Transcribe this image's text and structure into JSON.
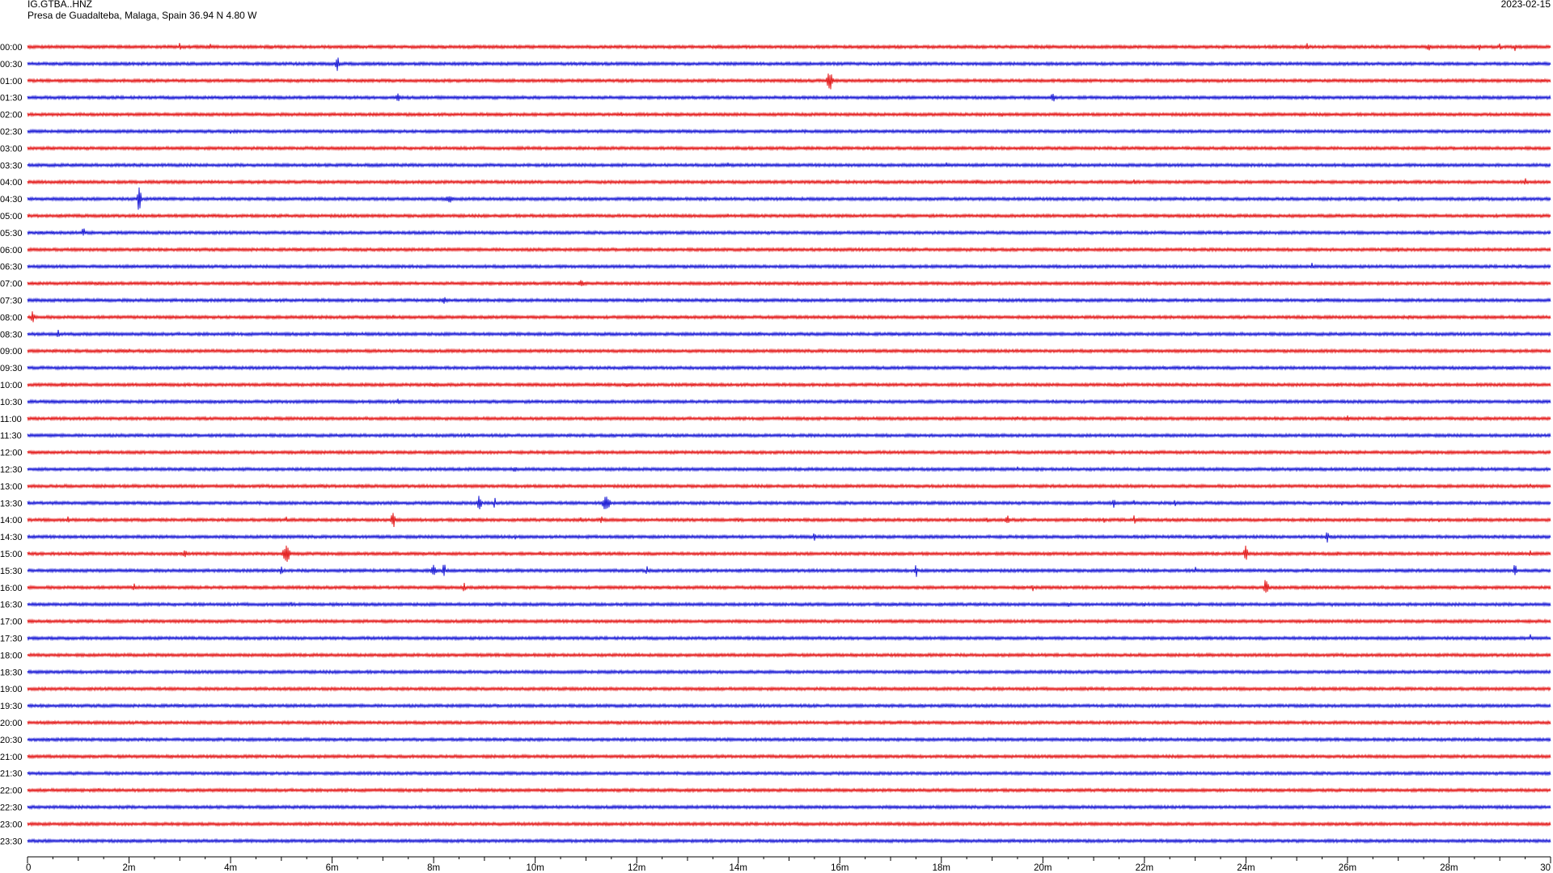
{
  "header": {
    "station": "IG.GTBA..HNZ",
    "location": "Presa de Guadalteba, Malaga, Spain  36.94 N 4.80 W",
    "date": "2023-02-15"
  },
  "colors": {
    "even_row": "#e00000",
    "odd_row": "#0000d0",
    "axis": "#000000",
    "background": "#ffffff"
  },
  "chart_data": {
    "type": "line",
    "title": "",
    "xlabel": "",
    "ylabel": "",
    "xlim": [
      0,
      30
    ],
    "x_ticks": [
      "0",
      "2m",
      "4m",
      "6m",
      "8m",
      "10m",
      "12m",
      "14m",
      "16m",
      "18m",
      "20m",
      "22m",
      "24m",
      "26m",
      "28m",
      "30"
    ],
    "rows": [
      "00:00",
      "00:30",
      "01:00",
      "01:30",
      "02:00",
      "02:30",
      "03:00",
      "03:30",
      "04:00",
      "04:30",
      "05:00",
      "05:30",
      "06:00",
      "06:30",
      "07:00",
      "07:30",
      "08:00",
      "08:30",
      "09:00",
      "09:30",
      "10:00",
      "10:30",
      "11:00",
      "11:30",
      "12:00",
      "12:30",
      "13:00",
      "13:30",
      "14:00",
      "14:30",
      "15:00",
      "15:30",
      "16:00",
      "16:30",
      "17:00",
      "17:30",
      "18:00",
      "18:30",
      "19:00",
      "19:30",
      "20:00",
      "20:30",
      "21:00",
      "21:30",
      "22:00",
      "22:30",
      "23:00",
      "23:30"
    ],
    "events": {
      "00:00": [
        [
          1.2,
          0.6,
          4
        ],
        [
          3.0,
          1.2,
          6
        ],
        [
          3.6,
          1.2,
          6
        ],
        [
          4.8,
          1.0,
          4
        ],
        [
          8.2,
          1.0,
          3
        ],
        [
          11.7,
          0.9,
          4
        ],
        [
          25.2,
          2.0,
          5
        ],
        [
          27.6,
          2.4,
          5
        ],
        [
          28.6,
          1.6,
          5
        ],
        [
          29.0,
          1.0,
          6
        ],
        [
          29.3,
          1.3,
          6
        ]
      ],
      "00:30": [
        [
          2.0,
          1.0,
          3
        ],
        [
          6.1,
          2.1,
          11
        ],
        [
          18.2,
          0.9,
          4
        ]
      ],
      "01:00": [
        [
          11.7,
          1.2,
          3
        ],
        [
          15.8,
          4.1,
          12
        ],
        [
          20.8,
          0.9,
          3
        ]
      ],
      "01:30": [
        [
          7.3,
          3.0,
          6
        ],
        [
          14.1,
          1.0,
          3
        ],
        [
          20.2,
          3.0,
          6
        ]
      ],
      "02:00": [
        [
          11.7,
          1.5,
          4
        ],
        [
          19.2,
          0.9,
          3
        ]
      ],
      "02:30": [
        [
          0.1,
          1.0,
          3
        ],
        [
          3.0,
          0.9,
          3
        ],
        [
          4.0,
          1.1,
          4
        ],
        [
          26.6,
          2.0,
          4
        ]
      ],
      "03:00": [
        [
          24.8,
          0.8,
          3
        ]
      ],
      "03:30": [
        [
          2.1,
          0.9,
          3
        ],
        [
          13.8,
          1.0,
          4
        ],
        [
          18.1,
          2.3,
          4
        ]
      ],
      "04:00": [
        [
          13.0,
          0.8,
          3
        ],
        [
          17.1,
          0.8,
          3
        ],
        [
          18.7,
          1.5,
          4
        ],
        [
          21.8,
          1.2,
          4
        ],
        [
          29.5,
          1.5,
          6
        ]
      ],
      "04:30": [
        [
          2.2,
          2.3,
          18
        ],
        [
          8.3,
          6.0,
          5
        ],
        [
          27.0,
          1.0,
          4
        ]
      ],
      "05:00": [
        [
          13.8,
          0.8,
          3
        ],
        [
          18.9,
          0.8,
          3
        ]
      ],
      "05:30": [
        [
          1.1,
          2.6,
          6
        ],
        [
          10.7,
          1.0,
          3
        ]
      ],
      "06:00": [
        [
          14.8,
          3.0,
          3
        ],
        [
          18.5,
          1.0,
          4
        ],
        [
          27.0,
          2.0,
          3
        ]
      ],
      "06:30": [
        [
          12.4,
          2.0,
          3
        ],
        [
          25.3,
          1.3,
          5
        ],
        [
          29.4,
          2.3,
          3
        ]
      ],
      "07:00": [
        [
          1.4,
          2.0,
          3
        ],
        [
          10.9,
          4.0,
          5
        ]
      ],
      "07:30": [
        [
          8.2,
          3.0,
          5
        ],
        [
          15.3,
          1.6,
          3
        ],
        [
          25.6,
          3.0,
          3
        ]
      ],
      "08:00": [
        [
          0.1,
          2.3,
          8
        ],
        [
          7.2,
          1.9,
          3
        ],
        [
          14.8,
          2.0,
          3
        ],
        [
          24.8,
          1.2,
          3
        ],
        [
          27.2,
          2.0,
          3
        ]
      ],
      "08:30": [
        [
          0.6,
          2.0,
          6
        ],
        [
          14.4,
          2.4,
          3
        ],
        [
          18.8,
          2.0,
          3
        ]
      ],
      "09:00": [
        [
          2.0,
          2.0,
          3
        ],
        [
          5.0,
          1.9,
          3
        ],
        [
          19.6,
          1.4,
          3
        ]
      ],
      "09:30": [
        [
          15.3,
          1.1,
          3
        ],
        [
          29.2,
          8.0,
          3
        ]
      ],
      "10:00": [
        [
          0.7,
          6.0,
          3
        ],
        [
          8.0,
          10.0,
          3
        ],
        [
          11.8,
          6.0,
          3
        ],
        [
          25.8,
          2.0,
          3
        ]
      ],
      "10:30": [
        [
          7.3,
          3.0,
          4
        ],
        [
          8.8,
          2.0,
          3
        ],
        [
          20.2,
          2.0,
          3
        ]
      ],
      "11:00": [
        [
          4.7,
          2.0,
          3
        ],
        [
          19.5,
          0.9,
          3
        ],
        [
          26.0,
          1.5,
          6
        ]
      ],
      "11:30": [
        [
          8.7,
          1.5,
          3
        ],
        [
          21.3,
          1.2,
          3
        ]
      ],
      "12:00": [
        [
          21.3,
          1.4,
          3
        ]
      ],
      "12:30": [
        [
          9.6,
          3.0,
          4
        ],
        [
          19.5,
          1.0,
          4
        ],
        [
          22.3,
          3.0,
          3
        ],
        [
          27.8,
          3.0,
          3
        ]
      ],
      "13:00": [
        [
          5.8,
          1.0,
          3
        ],
        [
          6.6,
          1.2,
          3
        ],
        [
          9.8,
          1.0,
          3
        ],
        [
          29.6,
          1.0,
          3
        ]
      ],
      "13:30": [
        [
          8.9,
          3.0,
          10
        ],
        [
          9.2,
          1.3,
          8
        ],
        [
          11.4,
          5.0,
          10
        ],
        [
          21.4,
          2.5,
          6
        ],
        [
          21.8,
          1.2,
          4
        ],
        [
          22.6,
          1.2,
          5
        ],
        [
          25.9,
          1.3,
          4
        ]
      ],
      "14:00": [
        [
          0.8,
          2.0,
          5
        ],
        [
          5.1,
          1.3,
          5
        ],
        [
          7.2,
          3.0,
          10
        ],
        [
          10.9,
          2.0,
          4
        ],
        [
          11.3,
          1.8,
          6
        ],
        [
          13.1,
          1.2,
          3
        ],
        [
          14.0,
          1.6,
          3
        ],
        [
          15.0,
          1.6,
          3
        ],
        [
          18.9,
          1.2,
          5
        ],
        [
          19.3,
          3.0,
          7
        ],
        [
          21.2,
          1.1,
          4
        ],
        [
          21.8,
          1.4,
          6
        ],
        [
          27.8,
          1.8,
          3
        ]
      ],
      "14:30": [
        [
          9.6,
          1.1,
          4
        ],
        [
          15.5,
          1.5,
          6
        ],
        [
          21.8,
          1.3,
          3
        ],
        [
          23.3,
          1.2,
          4
        ],
        [
          25.6,
          1.9,
          9
        ],
        [
          28.9,
          1.0,
          3
        ]
      ],
      "15:00": [
        [
          3.1,
          2.0,
          6
        ],
        [
          5.1,
          4.0,
          14
        ],
        [
          10.1,
          1.4,
          4
        ],
        [
          22.0,
          1.2,
          3
        ],
        [
          24.0,
          2.5,
          12
        ],
        [
          25.8,
          2.0,
          3
        ],
        [
          29.6,
          1.2,
          5
        ]
      ],
      "15:30": [
        [
          5.0,
          1.6,
          6
        ],
        [
          8.0,
          3.0,
          9
        ],
        [
          8.2,
          2.0,
          12
        ],
        [
          12.2,
          1.2,
          6
        ],
        [
          17.5,
          1.5,
          10
        ],
        [
          23.0,
          1.3,
          5
        ],
        [
          25.2,
          2.0,
          3
        ],
        [
          29.3,
          2.0,
          9
        ]
      ],
      "16:00": [
        [
          2.1,
          1.2,
          8
        ],
        [
          4.3,
          0.8,
          3
        ],
        [
          8.6,
          1.4,
          8
        ],
        [
          10.3,
          1.2,
          3
        ],
        [
          19.8,
          1.0,
          6
        ],
        [
          24.4,
          3.0,
          12
        ],
        [
          28.6,
          1.2,
          3
        ]
      ],
      "16:30": [
        [
          5.2,
          1.6,
          4
        ],
        [
          20.5,
          1.0,
          6
        ],
        [
          22.0,
          1.0,
          4
        ],
        [
          25.7,
          1.0,
          3
        ]
      ],
      "17:00": [
        [
          0.9,
          0.6,
          3
        ]
      ],
      "17:30": [
        [
          29.6,
          1.2,
          5
        ]
      ],
      "18:00": [],
      "18:30": [
        [
          4.5,
          0.6,
          3
        ]
      ],
      "19:00": [
        [
          0.2,
          0.6,
          3
        ]
      ],
      "19:30": [],
      "20:00": [],
      "20:30": [],
      "21:00": [],
      "21:30": [],
      "22:00": [
        [
          1.4,
          0.6,
          3
        ]
      ],
      "22:30": [],
      "23:00": [],
      "23:30": []
    }
  }
}
